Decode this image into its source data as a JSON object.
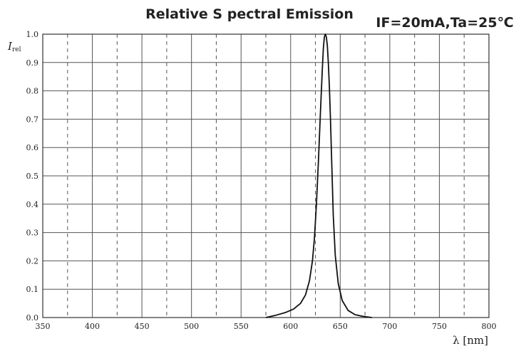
{
  "chart_data": {
    "type": "line",
    "title": "Relative S pectral Emission",
    "conditions": "IF=20mA,Ta=25℃",
    "xlabel": "λ [nm]",
    "ylabel": "I",
    "ylabel_subscript": "rel",
    "xlim": [
      350,
      800
    ],
    "ylim": [
      0,
      1.0
    ],
    "x_ticks": [
      "350",
      "400",
      "450",
      "500",
      "550",
      "600",
      "650",
      "700",
      "750",
      "800"
    ],
    "y_ticks": [
      "0.0",
      "0.1",
      "0.2",
      "0.3",
      "0.4",
      "0.5",
      "0.6",
      "0.7",
      "0.8",
      "0.9",
      "1.0"
    ],
    "minor_x_dashed": [
      375,
      425,
      475,
      525,
      575,
      625,
      675,
      725,
      775
    ],
    "grid": true,
    "series": [
      {
        "color": "#111111",
        "x": [
          575,
          585,
          595,
          603,
          610,
          615,
          619,
          622,
          624,
          626,
          628,
          630,
          632,
          633,
          634,
          635,
          636,
          637,
          638,
          639,
          640,
          641,
          642,
          643,
          645,
          648,
          652,
          658,
          665,
          673,
          682
        ],
        "y": [
          0.0,
          0.008,
          0.018,
          0.03,
          0.05,
          0.08,
          0.13,
          0.2,
          0.28,
          0.4,
          0.55,
          0.72,
          0.88,
          0.95,
          0.99,
          1.0,
          0.99,
          0.96,
          0.9,
          0.82,
          0.72,
          0.6,
          0.48,
          0.36,
          0.22,
          0.12,
          0.06,
          0.025,
          0.01,
          0.004,
          0.0
        ]
      }
    ]
  }
}
